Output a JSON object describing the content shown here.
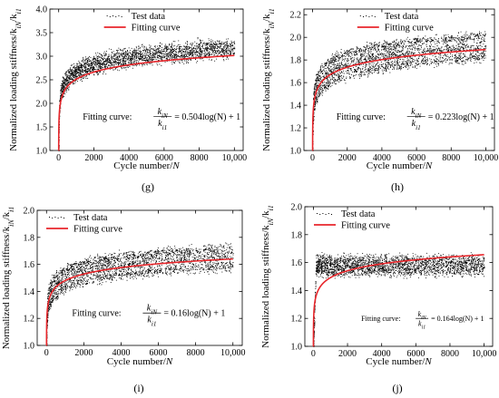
{
  "colors": {
    "test_data": "#000000",
    "fitting_curve": "#e8262b",
    "axis": "#000000"
  },
  "chart_data": [
    {
      "id": "g",
      "type": "scatter",
      "panel_label": "(g)",
      "xlabel_text": "Cycle number/",
      "xlabel_var": "N",
      "ylabel": "Normalized loading stiffness/k_{iN}/k_{i1}",
      "xlim": [
        -500,
        10500
      ],
      "ylim": [
        1.0,
        4.0
      ],
      "xticks": [
        0,
        2000,
        4000,
        6000,
        8000
      ],
      "xtick_labels": [
        "0",
        "2000",
        "4000",
        "6000",
        "8000"
      ],
      "xticks_last_label": "10,000",
      "yticks": [
        1.0,
        1.5,
        2.0,
        2.5,
        3.0,
        3.5,
        4.0
      ],
      "ytick_labels": [
        "1.0",
        "1.5",
        "2.0",
        "2.5",
        "3.0",
        "3.5",
        "4.0"
      ],
      "legend": {
        "placement": "top-center",
        "entries": [
          "Test data",
          "Fitting curve"
        ]
      },
      "fit": {
        "a": 0.504,
        "b": 1
      },
      "annotation": {
        "prefix": "Fitting curve:",
        "num": "k_{iN}",
        "den": "k_{i1}",
        "rhs": "= 0.504log(N) + 1"
      },
      "band": {
        "bands": [
          0.0,
          0.1,
          0.2
        ],
        "spread": 0.13,
        "n": 2600
      }
    },
    {
      "id": "h",
      "type": "scatter",
      "panel_label": "(h)",
      "xlabel_text": "Cycle number/",
      "xlabel_var": "N",
      "ylabel": "Normalized loading stiffness/k_{iN}/k_{i1}",
      "xlim": [
        -500,
        10500
      ],
      "ylim": [
        1.0,
        2.25
      ],
      "xticks": [
        0,
        2000,
        4000,
        6000,
        8000
      ],
      "xtick_labels": [
        "0",
        "2000",
        "4000",
        "6000",
        "8000"
      ],
      "xticks_last_label": "10,000",
      "yticks": [
        1.0,
        1.2,
        1.4,
        1.6,
        1.8,
        2.0,
        2.2
      ],
      "ytick_labels": [
        "1.0",
        "1.2",
        "1.4",
        "1.6",
        "1.8",
        "2.0",
        "2.2"
      ],
      "legend": {
        "placement": "top-center",
        "entries": [
          "Test data",
          "Fitting curve"
        ]
      },
      "fit": {
        "a": 0.223,
        "b": 1
      },
      "annotation": {
        "prefix": "Fitting curve:",
        "num": "k_{iN}",
        "den": "k_{i1}",
        "rhs": "= 0.223log(N) + 1"
      },
      "band": {
        "bands": [
          -0.09,
          0.0,
          0.09
        ],
        "spread": 0.05,
        "n": 2600
      }
    },
    {
      "id": "i",
      "type": "scatter",
      "panel_label": "(i)",
      "xlabel_text": "Cycle number/",
      "xlabel_var": "N",
      "ylabel": "Normalized loading stiffness/k_{iN}/k_{i1}",
      "xlim": [
        -500,
        10500
      ],
      "ylim": [
        1.0,
        2.0
      ],
      "xticks": [
        0,
        2000,
        4000,
        6000,
        8000
      ],
      "xtick_labels": [
        "0",
        "2000",
        "4000",
        "6000",
        "8000"
      ],
      "xticks_last_label": "10,000",
      "yticks": [
        1.0,
        1.2,
        1.4,
        1.6,
        1.8,
        2.0
      ],
      "ytick_labels": [
        "1.0",
        "1.2",
        "1.4",
        "1.6",
        "1.8",
        "2.0"
      ],
      "legend": {
        "placement": "top-left",
        "entries": [
          "Test data",
          "Fitting curve"
        ]
      },
      "fit": {
        "a": 0.16,
        "b": 1
      },
      "annotation": {
        "prefix": "Fitting curve:",
        "num": "k_{iN}",
        "den": "k_{i1}",
        "rhs": "= 0.16log(N) + 1"
      },
      "band": {
        "bands": [
          -0.07,
          0.0,
          0.06
        ],
        "spread": 0.04,
        "n": 2600
      }
    },
    {
      "id": "j",
      "type": "scatter",
      "panel_label": "(j)",
      "xlabel_text": "Cycle number/",
      "xlabel_var": "N",
      "ylabel": "Normalized loading stiffness/k_{iN}/k_{i1}",
      "xlim": [
        -500,
        10500
      ],
      "ylim": [
        1.0,
        2.0
      ],
      "xticks": [
        0,
        2000,
        4000,
        6000,
        8000
      ],
      "xtick_labels": [
        "0",
        "2000",
        "4000",
        "6000",
        "8000"
      ],
      "xticks_last_label": "10,000",
      "yticks": [
        1.0,
        1.2,
        1.4,
        1.6,
        1.8,
        2.0
      ],
      "ytick_labels": [
        "1.0",
        "1.2",
        "1.4",
        "1.6",
        "1.8",
        "2.0"
      ],
      "legend": {
        "placement": "top-left",
        "entries": [
          "Test data",
          "Fitting curve"
        ]
      },
      "fit": {
        "a": 0.164,
        "b": 1
      },
      "annotation": {
        "prefix": "Fitting curve:",
        "num": "k_{iN}",
        "den": "k_{i1}",
        "rhs": "= 0.164log(N) + 1",
        "small": true
      },
      "band": {
        "plateau": 1.58,
        "bands": [
          -0.04,
          0.0,
          0.04
        ],
        "spread": 0.04,
        "n": 2600
      }
    }
  ]
}
